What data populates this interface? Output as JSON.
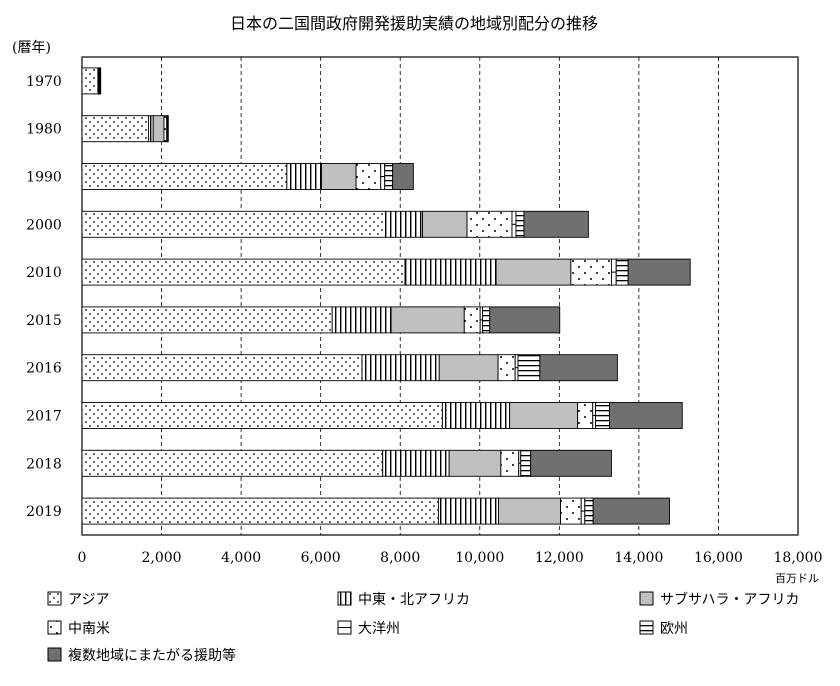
{
  "chart_data": {
    "type": "bar",
    "orientation": "horizontal",
    "stacked": true,
    "title": "日本の二国間政府開発援助実績の地域別配分の推移",
    "ylabel": "(暦年)",
    "xlabel": "",
    "unit_label": "百万ドル",
    "xlim": [
      0,
      18000
    ],
    "x_ticks": [
      "0",
      "2,000",
      "4,000",
      "6,000",
      "8,000",
      "10,000",
      "12,000",
      "14,000",
      "16,000",
      "18,000"
    ],
    "grid": "vertical dashed",
    "legend_position": "bottom",
    "categories": [
      "1970",
      "1980",
      "1990",
      "2000",
      "2010",
      "2015",
      "2016",
      "2017",
      "2018",
      "2019"
    ],
    "series": [
      {
        "name": "アジア",
        "pattern": "dots",
        "values": [
          400,
          1670,
          5150,
          7630,
          8120,
          6290,
          7040,
          9060,
          7560,
          8960
        ]
      },
      {
        "name": "中東・北アフリカ",
        "pattern": "vertical-lines",
        "values": [
          20,
          120,
          870,
          930,
          2290,
          1480,
          1940,
          1690,
          1670,
          1510
        ]
      },
      {
        "name": "サブサハラ・アフリカ",
        "pattern": "gray",
        "values": [
          20,
          270,
          870,
          1120,
          1880,
          1840,
          1480,
          1710,
          1300,
          1560
        ]
      },
      {
        "name": "中南米",
        "pattern": "dots-sparse",
        "values": [
          10,
          70,
          620,
          1130,
          1020,
          400,
          430,
          380,
          450,
          520
        ]
      },
      {
        "name": "大洋州",
        "pattern": "horizontal-line",
        "values": [
          5,
          20,
          100,
          100,
          120,
          60,
          70,
          70,
          50,
          90
        ]
      },
      {
        "name": "欧州",
        "pattern": "horizontal-lines",
        "values": [
          5,
          20,
          200,
          200,
          300,
          180,
          550,
          350,
          250,
          210
        ]
      },
      {
        "name": "複数地域にまたがる援助等",
        "pattern": "dark-gray",
        "values": [
          0,
          0,
          520,
          1620,
          1560,
          1760,
          1950,
          1830,
          2030,
          1920
        ]
      }
    ]
  }
}
